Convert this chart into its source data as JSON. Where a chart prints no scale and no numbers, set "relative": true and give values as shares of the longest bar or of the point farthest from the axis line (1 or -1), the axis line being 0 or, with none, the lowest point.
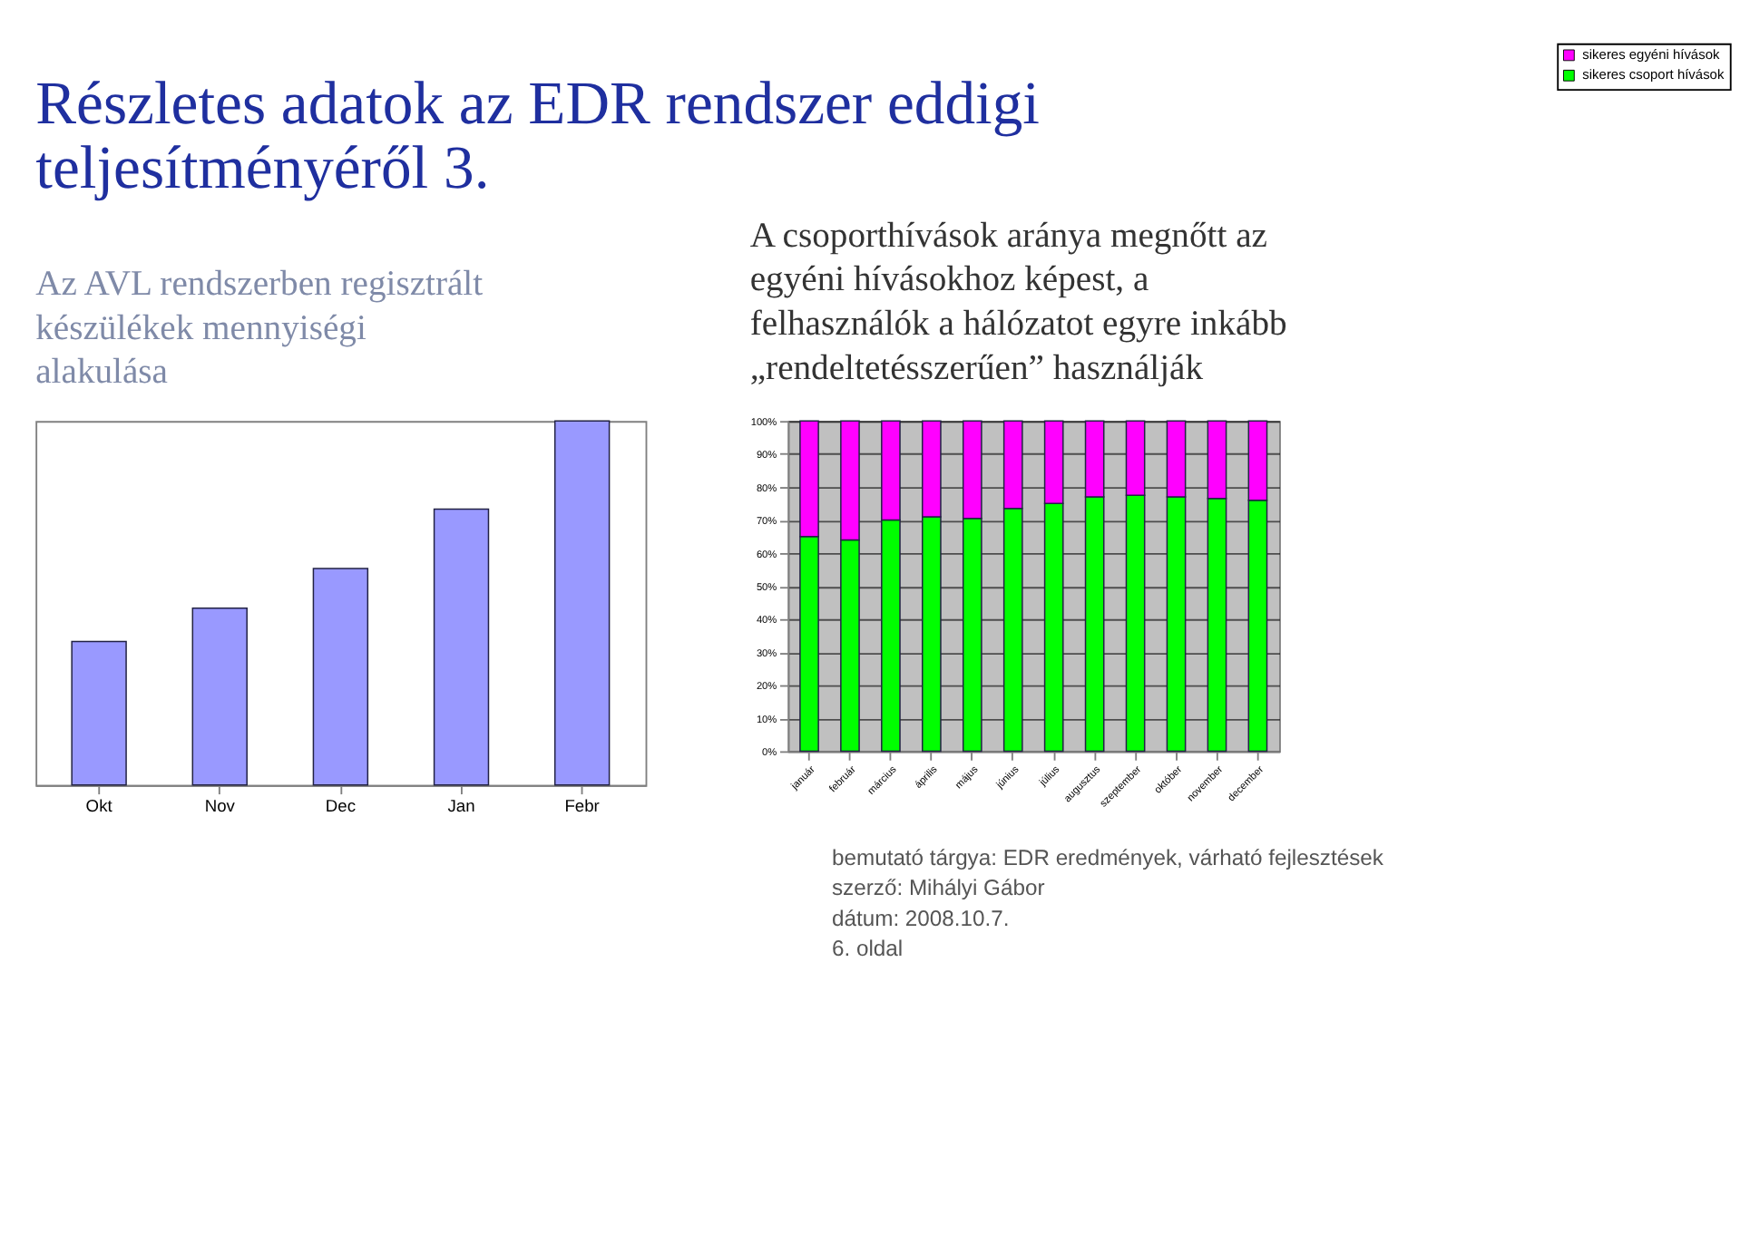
{
  "chart_data": [
    {
      "type": "bar",
      "title": "Részletes adatok az EDR rendszer eddigi teljesítményéről 3.",
      "subtitle": "Az AVL rendszerben regisztrált készülékek mennyiségi alakulása",
      "categories": [
        "Okt",
        "Nov",
        "Dec",
        "Jan",
        "Febr"
      ],
      "values": [
        0.394,
        0.486,
        0.595,
        0.758,
        1
      ],
      "color": "#9999ff",
      "relative": true,
      "grid": false,
      "legend": false
    },
    {
      "type": "bar",
      "title": "A csoporthívások aránya megnőtt az egyéni hívásokhoz képest, a felhasználók a hálózatot egyre inkább „rendeltetésszerűen” használják",
      "categories": [
        "január",
        "február",
        "március",
        "április",
        "május",
        "június",
        "július",
        "augusztus",
        "szeptember",
        "október",
        "november",
        "december"
      ],
      "stacked": true,
      "series": [
        {
          "name": "sikeres csoport hívások",
          "color": "#00ff00",
          "values": [
            65,
            64,
            70,
            71,
            70.5,
            73.5,
            75,
            77,
            77.5,
            77,
            76.5,
            76
          ]
        },
        {
          "name": "sikeres egyéni hívások",
          "color": "#ff00ff",
          "values": [
            35,
            36,
            30,
            29,
            29.5,
            26.5,
            25,
            23,
            22.5,
            23,
            23.5,
            24
          ]
        }
      ],
      "ylim": [
        0,
        100
      ],
      "yticks": [
        {
          "value": 0,
          "label": "0%"
        },
        {
          "value": 10,
          "label": "10%"
        },
        {
          "value": 20,
          "label": "20%"
        },
        {
          "value": 30,
          "label": "30%"
        },
        {
          "value": 40,
          "label": "40%"
        },
        {
          "value": 50,
          "label": "50%"
        },
        {
          "value": 60,
          "label": "60%"
        },
        {
          "value": 70,
          "label": "70%"
        },
        {
          "value": 80,
          "label": "80%"
        },
        {
          "value": 90,
          "label": "90%"
        },
        {
          "value": 100,
          "label": "100%"
        }
      ],
      "grid": "y",
      "legend": "right",
      "annotations": [
        "bemutató tárgya: EDR eredmények, várható fejlesztések",
        "szerző: Mihályi Gábor",
        "dátum: 2008.10.7.",
        "6. oldal"
      ]
    }
  ]
}
